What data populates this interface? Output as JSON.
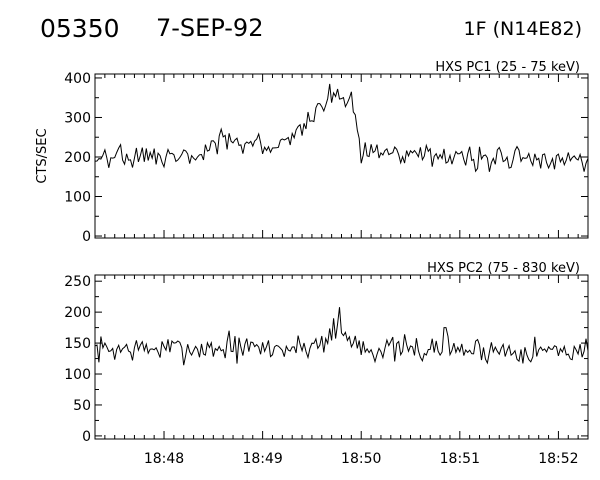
{
  "header": {
    "event_id": "05350",
    "date": "7-SEP-92",
    "flare_class": "1F (N14E82)"
  },
  "chart_data": [
    {
      "type": "line",
      "title": "HXS PC1 (25 - 75 keV)",
      "ylabel": "CTS/SEC",
      "xlabel": "",
      "xlim": [
        1127.3,
        1132.3
      ],
      "ylim": [
        -5,
        410
      ],
      "yticks": [
        0,
        100,
        200,
        300,
        400
      ],
      "xtick_values": [
        1128,
        1129,
        1130,
        1131,
        1132
      ],
      "xtick_labels": [
        "18:48",
        "18:49",
        "18:50",
        "18:51",
        "18:52"
      ],
      "x_unit": "minutes after 00:00 UT",
      "sample_step_min": 0.02,
      "baseline": 200,
      "noise": 17,
      "seed": 1,
      "envelope": [
        [
          1127.3,
          200
        ],
        [
          1128.0,
          200
        ],
        [
          1128.35,
          205
        ],
        [
          1128.5,
          225
        ],
        [
          1128.6,
          262
        ],
        [
          1128.75,
          230
        ],
        [
          1128.9,
          235
        ],
        [
          1129.1,
          215
        ],
        [
          1129.2,
          232
        ],
        [
          1129.35,
          260
        ],
        [
          1129.5,
          295
        ],
        [
          1129.6,
          320
        ],
        [
          1129.72,
          360
        ],
        [
          1129.85,
          345
        ],
        [
          1129.93,
          300
        ],
        [
          1130.0,
          220
        ],
        [
          1130.1,
          205
        ],
        [
          1130.5,
          200
        ],
        [
          1132.3,
          195
        ]
      ],
      "spikes": [
        [
          1129.68,
          385
        ],
        [
          1129.76,
          372
        ],
        [
          1129.9,
          365
        ],
        [
          1129.57,
          335
        ]
      ]
    },
    {
      "type": "line",
      "title": "HXS PC2 (75 - 830 keV)",
      "ylabel": "",
      "xlabel": "",
      "xlim": [
        1127.3,
        1132.3
      ],
      "ylim": [
        -5,
        260
      ],
      "yticks": [
        0,
        50,
        100,
        150,
        200,
        250
      ],
      "xtick_values": [
        1128,
        1129,
        1130,
        1131,
        1132
      ],
      "xtick_labels": [
        "18:48",
        "18:49",
        "18:50",
        "18:51",
        "18:52"
      ],
      "x_unit": "minutes after 00:00 UT",
      "sample_step_min": 0.02,
      "baseline": 140,
      "noise": 13,
      "seed": 7,
      "envelope": [
        [
          1127.3,
          140
        ],
        [
          1129.4,
          142
        ],
        [
          1129.6,
          152
        ],
        [
          1129.75,
          170
        ],
        [
          1129.9,
          155
        ],
        [
          1130.1,
          140
        ],
        [
          1132.3,
          138
        ]
      ],
      "spikes": [
        [
          1129.78,
          208
        ],
        [
          1129.72,
          190
        ],
        [
          1130.85,
          175
        ],
        [
          1128.65,
          170
        ]
      ]
    }
  ]
}
